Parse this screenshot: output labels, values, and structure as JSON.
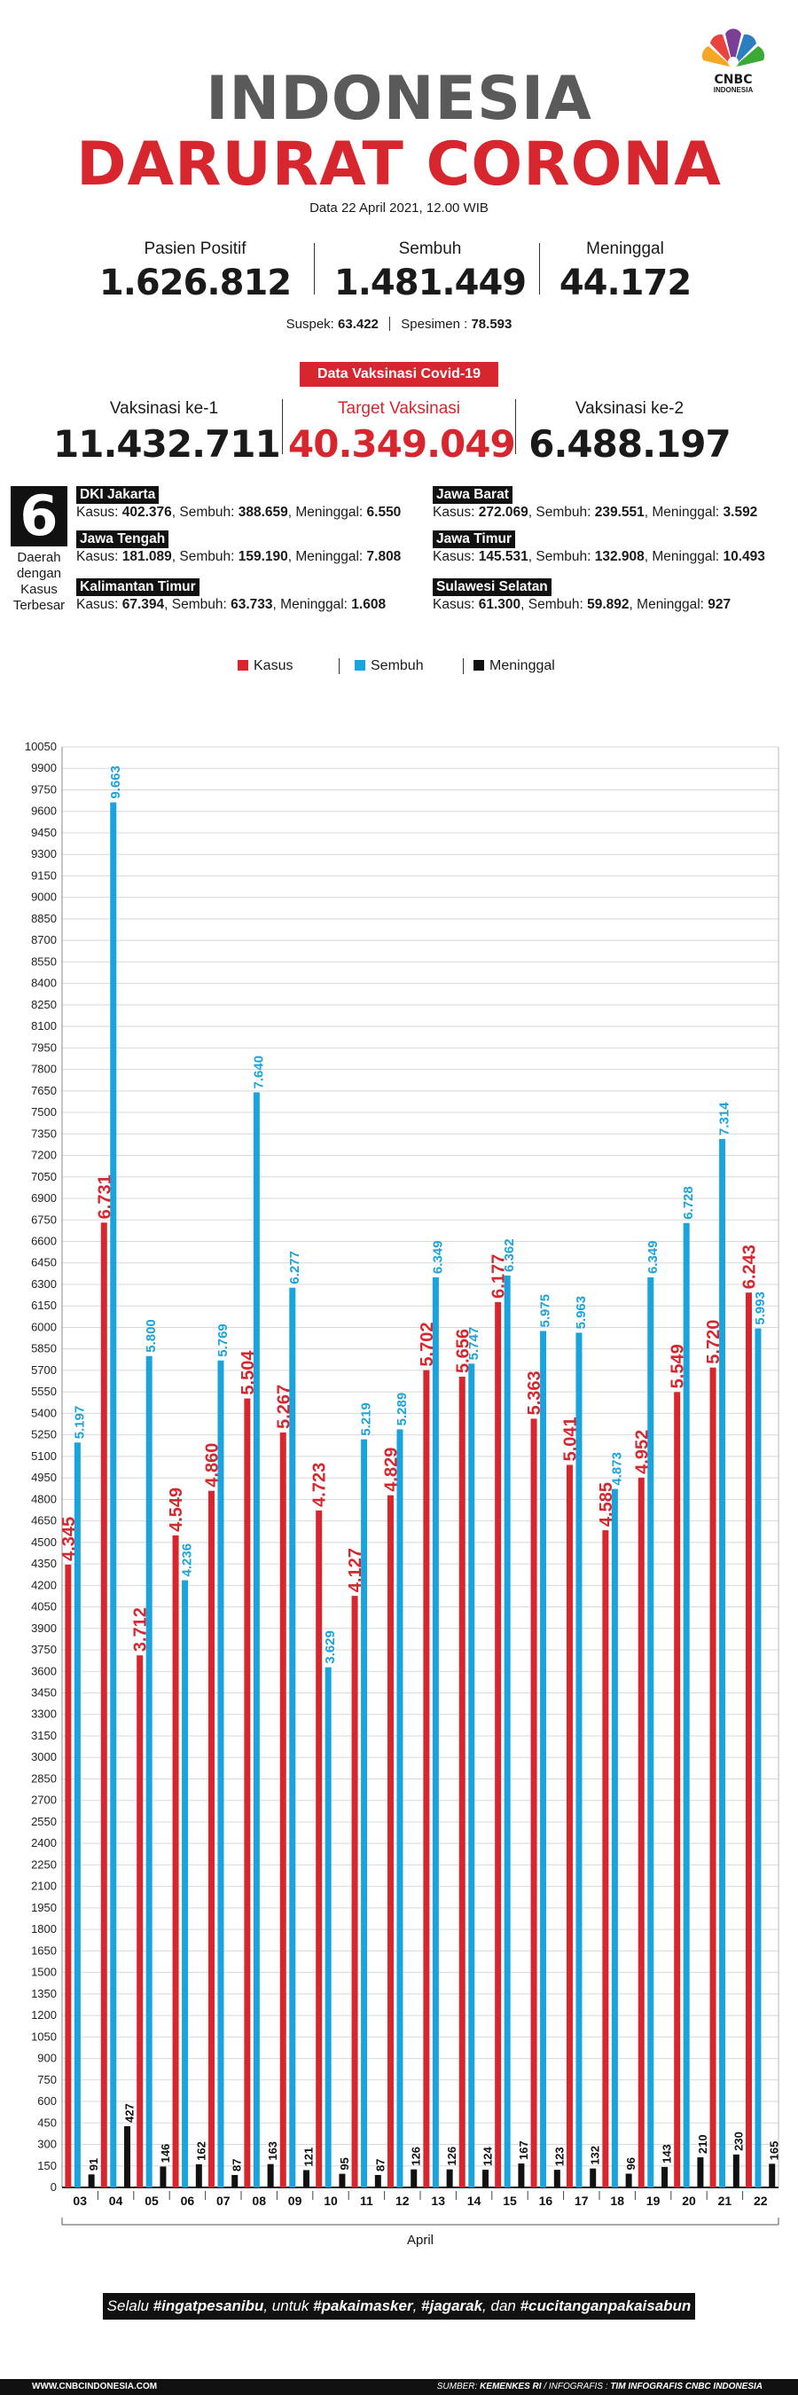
{
  "logo": {
    "text": "CNBC",
    "sub": "INDONESIA"
  },
  "title_line1": "INDONESIA",
  "title_line2": "DARURAT CORONA",
  "dateline": "Data 22 April 2021, 12.00 WIB",
  "stats": {
    "positif": {
      "label": "Pasien Positif",
      "value": "1.626.812"
    },
    "sembuh": {
      "label": "Sembuh",
      "value": "1.481.449"
    },
    "meninggal": {
      "label": "Meninggal",
      "value": "44.172"
    }
  },
  "suspek_label": "Suspek:",
  "suspek_value": "63.422",
  "spesimen_label": "Spesimen :",
  "spesimen_value": "78.593",
  "vaksin_badge": "Data Vaksinasi Covid-19",
  "vaksin": {
    "ke1": {
      "label": "Vaksinasi ke-1",
      "value": "11.432.711"
    },
    "target": {
      "label": "Target Vaksinasi",
      "value": "40.349.049"
    },
    "ke2": {
      "label": "Vaksinasi ke-2",
      "value": "6.488.197"
    }
  },
  "six_number": "6",
  "six_label": "Daerah dengan Kasus Terbesar",
  "regions": [
    {
      "name": "DKI Jakarta",
      "kasus": "402.376",
      "sembuh": "388.659",
      "meninggal": "6.550"
    },
    {
      "name": "Jawa Barat",
      "kasus": "272.069",
      "sembuh": "239.551",
      "meninggal": "3.592"
    },
    {
      "name": "Jawa Tengah",
      "kasus": "181.089",
      "sembuh": "159.190",
      "meninggal": "7.808"
    },
    {
      "name": "Jawa Timur",
      "kasus": "145.531",
      "sembuh": "132.908",
      "meninggal": "10.493"
    },
    {
      "name": "Kalimantan Timur",
      "kasus": "67.394",
      "sembuh": "63.733",
      "meninggal": "1.608"
    },
    {
      "name": "Sulawesi Selatan",
      "kasus": "61.300",
      "sembuh": "59.892",
      "meninggal": "927"
    }
  ],
  "region_labels": {
    "kasus": "Kasus:",
    "sembuh": "Sembuh:",
    "meninggal": "Meninggal:"
  },
  "colors": {
    "kasus": "#d7262e",
    "sembuh": "#1aa3dc",
    "meninggal": "#111111"
  },
  "chart_data": {
    "type": "bar",
    "xlabel": "April",
    "categories": [
      "03",
      "04",
      "05",
      "06",
      "07",
      "08",
      "09",
      "10",
      "11",
      "12",
      "13",
      "14",
      "15",
      "16",
      "17",
      "18",
      "19",
      "20",
      "21",
      "22"
    ],
    "series": [
      {
        "name": "Kasus",
        "values": [
          4345,
          6731,
          3712,
          4549,
          4860,
          5504,
          5267,
          4723,
          4127,
          4829,
          5702,
          5656,
          6177,
          5363,
          5041,
          4585,
          4952,
          5549,
          5720,
          6243
        ],
        "labels": [
          "4.345",
          "6.731",
          "3.712",
          "4.549",
          "4.860",
          "5.504",
          "5.267",
          "4.723",
          "4.127",
          "4.829",
          "5.702",
          "5.656",
          "6.177",
          "5.363",
          "5.041",
          "4.585",
          "4.952",
          "5.549",
          "5.720",
          "6.243"
        ]
      },
      {
        "name": "Sembuh",
        "values": [
          5197,
          9663,
          5800,
          4236,
          5769,
          7640,
          6277,
          3629,
          5219,
          5289,
          6349,
          5747,
          6362,
          5975,
          5963,
          4873,
          6349,
          6728,
          7314,
          5993
        ],
        "labels": [
          "5.197",
          "9.663",
          "5.800",
          "4.236",
          "5.769",
          "7.640",
          "6.277",
          "3.629",
          "5.219",
          "5.289",
          "6.349",
          "5.747",
          "6.362",
          "5.975",
          "5.963",
          "4.873",
          "6.349",
          "6.728",
          "7.314",
          "5.993"
        ]
      },
      {
        "name": "Meninggal",
        "values": [
          91,
          427,
          146,
          162,
          87,
          163,
          121,
          95,
          87,
          126,
          126,
          124,
          167,
          123,
          132,
          96,
          143,
          210,
          230,
          165
        ],
        "labels": [
          "91",
          "427",
          "146",
          "162",
          "87",
          "163",
          "121",
          "95",
          "87",
          "126",
          "126",
          "124",
          "167",
          "123",
          "132",
          "96",
          "143",
          "210",
          "230",
          "165"
        ]
      }
    ],
    "ylim": [
      0,
      10050
    ],
    "yticks": [
      0,
      150,
      300,
      450,
      600,
      750,
      900,
      1050,
      1200,
      1350,
      1500,
      1650,
      1800,
      1950,
      2100,
      2250,
      2400,
      2550,
      2700,
      2850,
      3000,
      3150,
      3300,
      3450,
      3600,
      3750,
      3900,
      4050,
      4200,
      4350,
      4500,
      4650,
      4800,
      4950,
      5100,
      5250,
      5400,
      5550,
      5700,
      5850,
      6000,
      6150,
      6300,
      6450,
      6600,
      6750,
      6900,
      7050,
      7200,
      7350,
      7500,
      7650,
      7800,
      7950,
      8100,
      8250,
      8400,
      8550,
      8700,
      8850,
      9000,
      9150,
      9300,
      9450,
      9600,
      9750,
      9900,
      10050
    ],
    "grid": true,
    "legend_position": "top"
  },
  "footer_banner": {
    "pre": "Selalu ",
    "t1": "#ingatpesanibu",
    "m1": ", untuk ",
    "t2": "#pakaimasker",
    "m2": ", ",
    "t3": "#jagarak",
    "m3": ", dan ",
    "t4": "#cucitanganpakaisabun"
  },
  "footer_left": "WWW.CNBCINDONESIA.COM",
  "footer_right_label": "SUMBER:",
  "footer_right_source": "KEMENKES RI",
  "footer_right_mid": "/ INFOGRAFIS :",
  "footer_right_team": "TIM INFOGRAFIS CNBC INDONESIA"
}
